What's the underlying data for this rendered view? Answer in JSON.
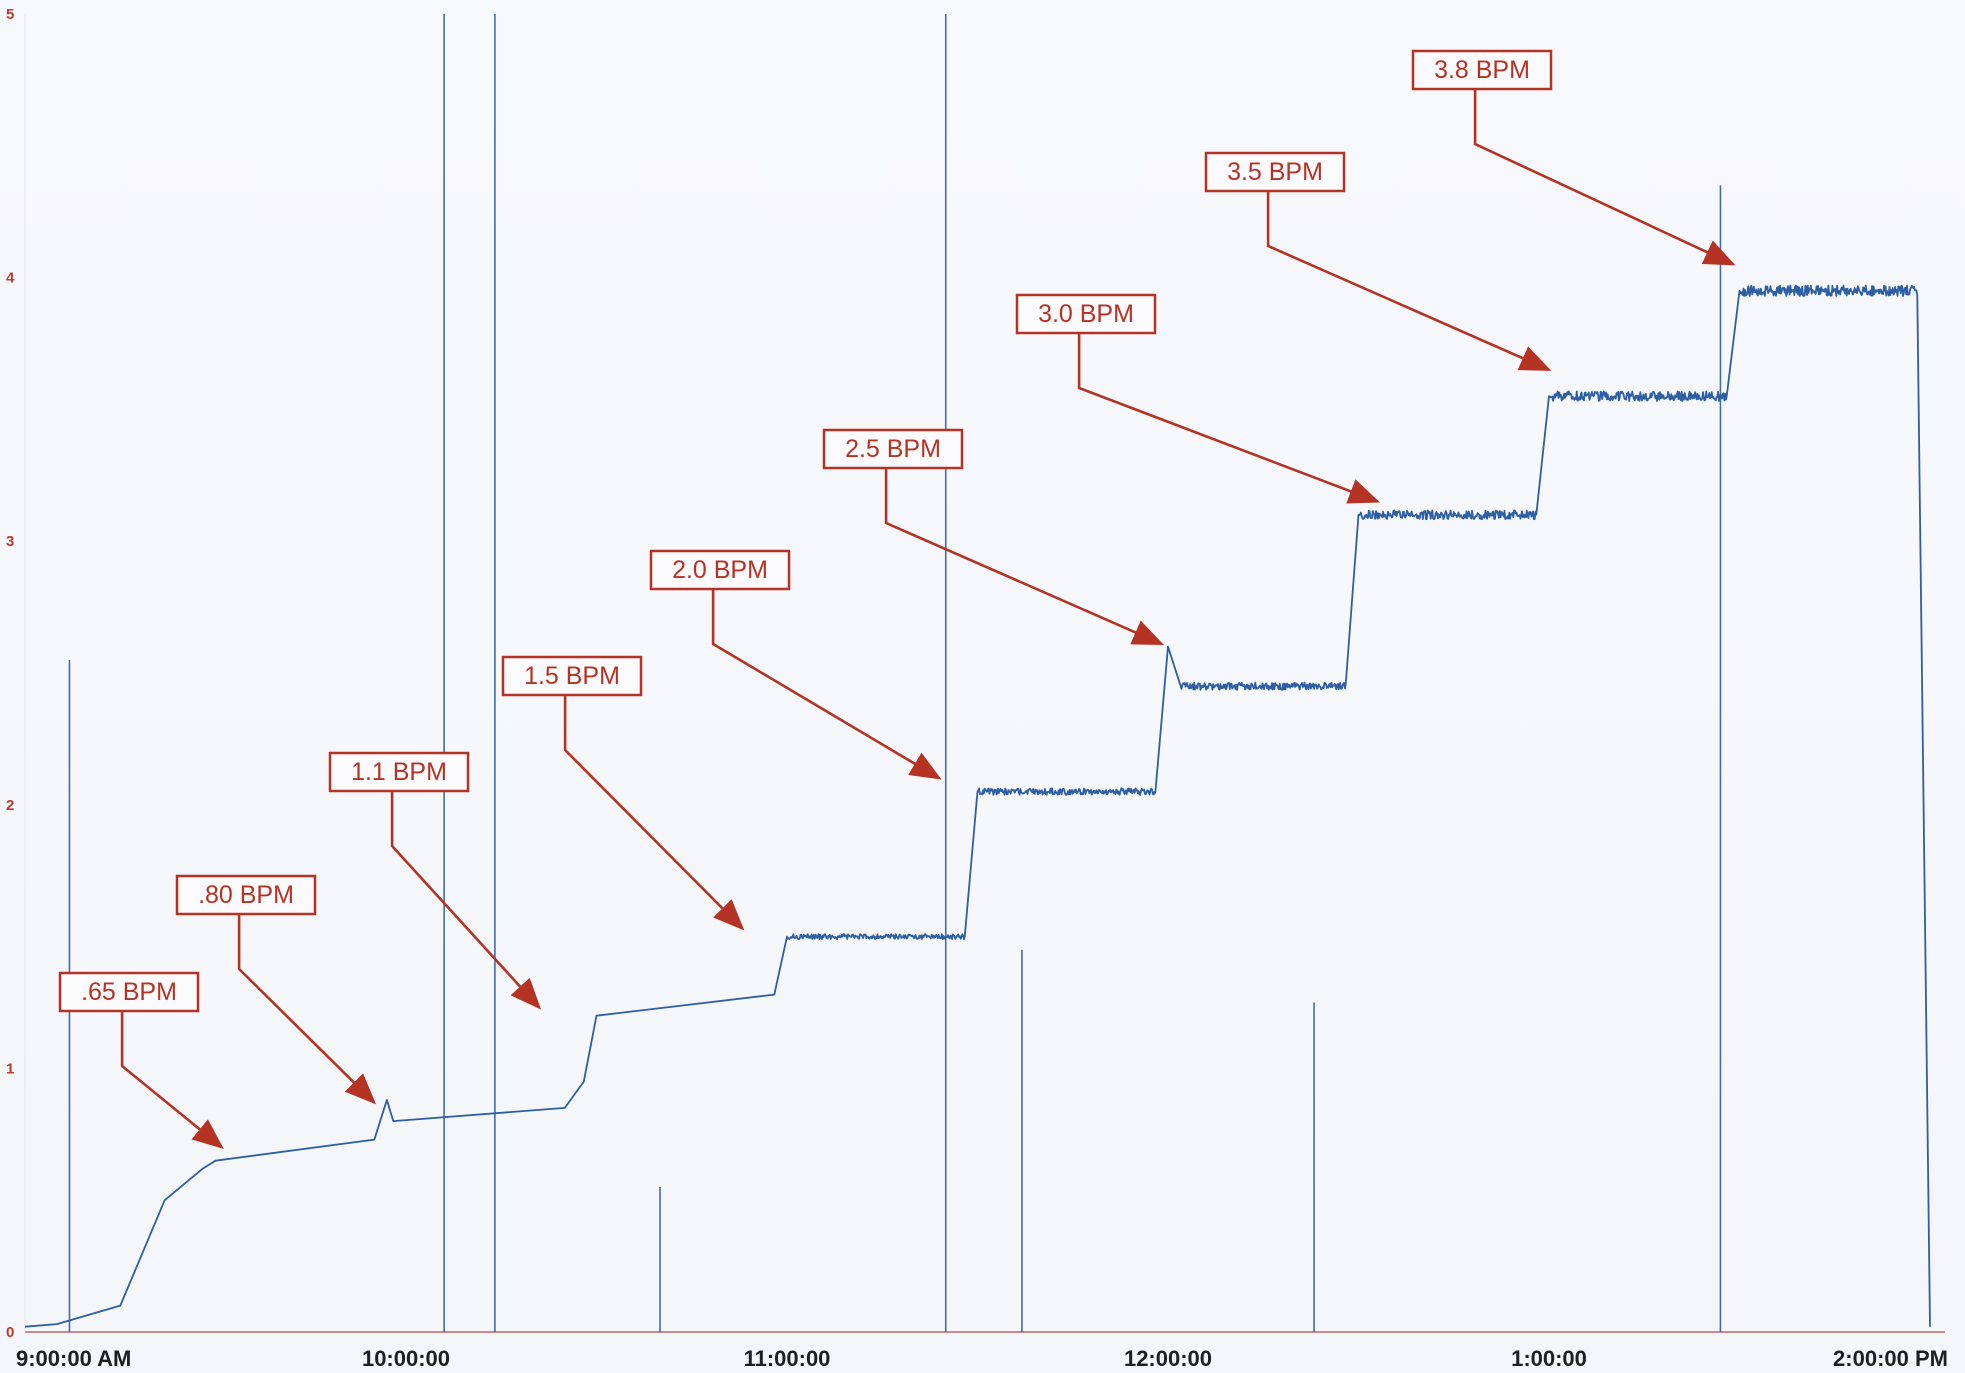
{
  "chart_data": {
    "type": "line",
    "title": "",
    "xlabel": "",
    "ylabel": "",
    "x_start": "9:00:00 AM",
    "x_end": "2:00:00 PM",
    "ylim": [
      0,
      5
    ],
    "y_ticks": [
      "0",
      "1",
      "2",
      "3",
      "4",
      "5"
    ],
    "x_ticks": [
      "9:00:00 AM",
      "10:00:00",
      "11:00:00",
      "12:00:00",
      "1:00:00",
      "2:00:00 PM"
    ],
    "series": [
      {
        "points": [
          [
            "09:00",
            0.02
          ],
          [
            "09:05",
            0.03
          ],
          [
            "09:15",
            0.1
          ],
          [
            "09:22",
            0.5
          ],
          [
            "09:28",
            0.62
          ],
          [
            "09:30",
            0.65
          ],
          [
            "09:55",
            0.73
          ],
          [
            "09:57",
            0.88
          ],
          [
            "09:58",
            0.8
          ],
          [
            "10:25",
            0.85
          ],
          [
            "10:28",
            0.95
          ],
          [
            "10:30",
            1.2
          ],
          [
            "10:58",
            1.28
          ],
          [
            "11:00",
            1.5
          ],
          [
            "11:28",
            1.5
          ],
          [
            "11:30",
            2.05
          ],
          [
            "11:58",
            2.05
          ],
          [
            "12:00",
            2.6
          ],
          [
            "12:02",
            2.45
          ],
          [
            "12:28",
            2.45
          ],
          [
            "12:30",
            3.1
          ],
          [
            "12:58",
            3.1
          ],
          [
            "13:00",
            3.55
          ],
          [
            "13:28",
            3.55
          ],
          [
            "13:30",
            3.95
          ],
          [
            "13:58",
            3.95
          ],
          [
            "14:00",
            0.02
          ]
        ],
        "color": "#2e5ea3"
      }
    ],
    "spikes": [
      {
        "time": "09:07",
        "y": 2.55
      },
      {
        "time": "10:06",
        "y": 5
      },
      {
        "time": "10:14",
        "y": 5
      },
      {
        "time": "10:40",
        "y": 0.55
      },
      {
        "time": "11:25",
        "y": 5
      },
      {
        "time": "11:37",
        "y": 1.45
      },
      {
        "time": "12:23",
        "y": 1.25
      },
      {
        "time": "13:27",
        "y": 4.35
      }
    ],
    "annotations": [
      {
        "label": ".65 BPM",
        "points_to_time": "09:31",
        "points_to_y": 0.67
      },
      {
        "label": ".80 BPM",
        "points_to_time": "09:55",
        "points_to_y": 0.84
      },
      {
        "label": "1.1 BPM",
        "points_to_time": "10:21",
        "points_to_y": 1.2
      },
      {
        "label": "1.5 BPM",
        "points_to_time": "10:53",
        "points_to_y": 1.5
      },
      {
        "label": "2.0 BPM",
        "points_to_time": "11:24",
        "points_to_y": 2.07
      },
      {
        "label": "2.5 BPM",
        "points_to_time": "11:59",
        "points_to_y": 2.58
      },
      {
        "label": "3.0 BPM",
        "points_to_time": "12:33",
        "points_to_y": 3.12
      },
      {
        "label": "3.5 BPM",
        "points_to_time": "13:00",
        "points_to_y": 3.62
      },
      {
        "label": "3.8 BPM",
        "points_to_time": "13:29",
        "points_to_y": 4.02
      }
    ],
    "grid": false,
    "legend": "none",
    "colors": {
      "line": "#2e5ea3",
      "annotation": "#b53324",
      "background": "#f7f8fb"
    }
  }
}
